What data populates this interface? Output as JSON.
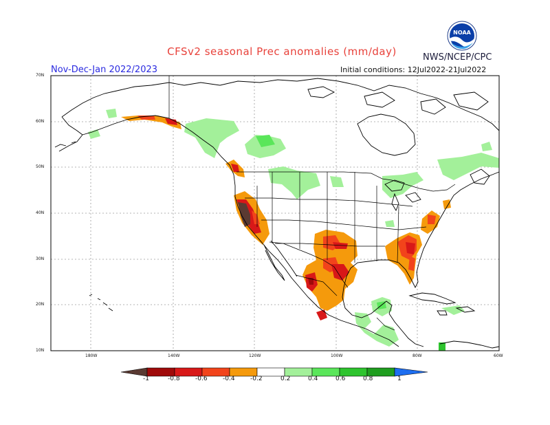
{
  "header": {
    "title": "CFSv2 seasonal Prec anomalies (mm/day)",
    "agency": "NWS/NCEP/CPC",
    "season": "Nov-Dec-Jan 2022/2023",
    "initial_conditions": "Initial conditions: 12Jul2022-21Jul2022"
  },
  "logo": {
    "text": "NOAA"
  },
  "map": {
    "lat_labels": [
      "70N",
      "60N",
      "50N",
      "40N",
      "30N",
      "20N",
      "10N"
    ],
    "lon_labels": [
      "180W",
      "140W",
      "120W",
      "100W",
      "80W",
      "60W"
    ]
  },
  "colorbar": {
    "labels": [
      "-1",
      "-0.8",
      "-0.6",
      "-0.4",
      "-0.2",
      "0.2",
      "0.4",
      "0.6",
      "0.8",
      "1"
    ],
    "colors": [
      "#5a3a32",
      "#a00a0a",
      "#d81818",
      "#f2441b",
      "#f59a0c",
      "#ffffff",
      "#a3f09a",
      "#5ae65a",
      "#2ec42e",
      "#1f9e1f",
      "#1e6ef0"
    ]
  }
}
